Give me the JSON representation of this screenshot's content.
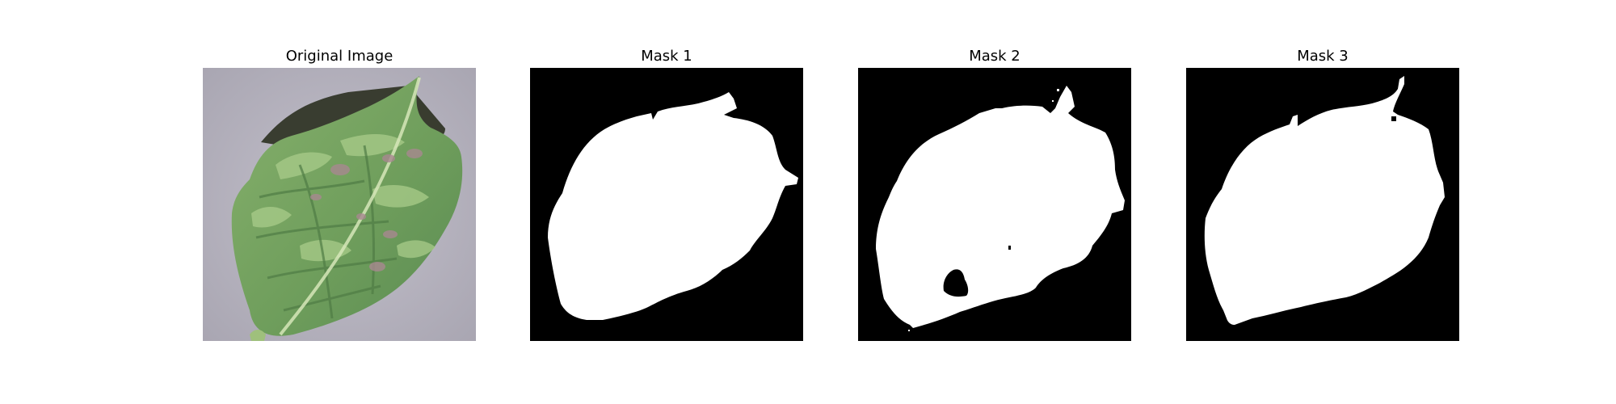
{
  "figure": {
    "panels": [
      {
        "title": "Original Image",
        "kind": "photo"
      },
      {
        "title": "Mask 1",
        "kind": "mask"
      },
      {
        "title": "Mask 2",
        "kind": "mask"
      },
      {
        "title": "Mask 3",
        "kind": "mask"
      }
    ]
  },
  "colors": {
    "mask_background": "#000000",
    "mask_foreground": "#ffffff",
    "photo_background": "#b3b0bc",
    "leaf_base": "#6f9e5c",
    "leaf_light": "#a9cc8a",
    "leaf_dark": "#4f7c45",
    "leaf_spot": "#a88890",
    "shadow": "#2b3020"
  }
}
